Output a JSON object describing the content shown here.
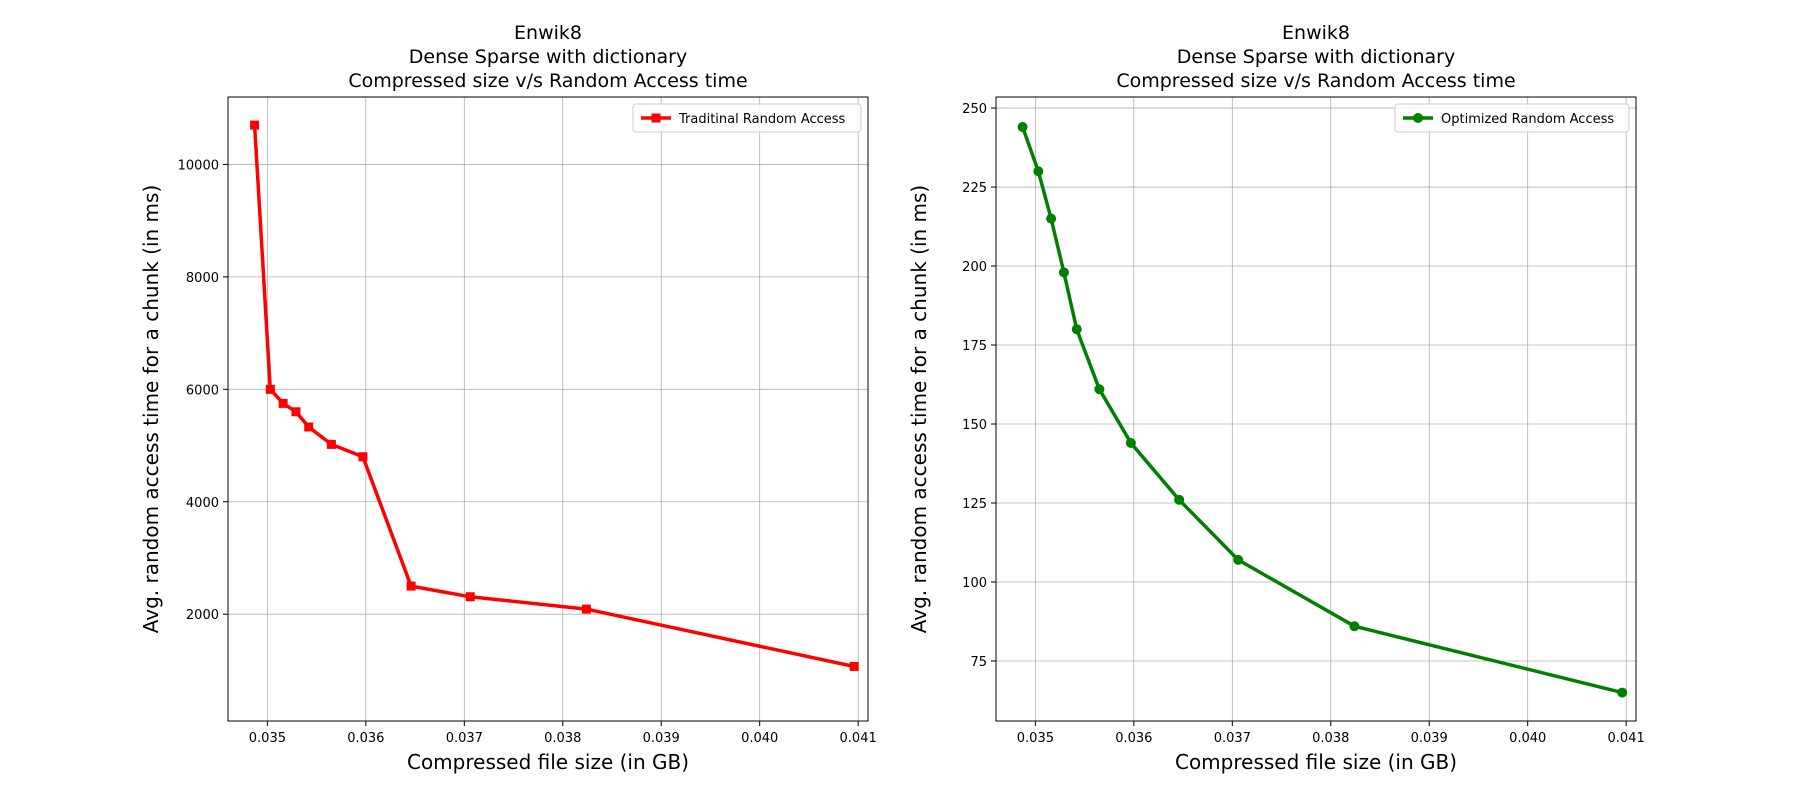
{
  "chart_data": [
    {
      "type": "line",
      "title_lines": [
        "Enwik8",
        "Dense Sparse with dictionary",
        "Compressed size v/s Random Access time"
      ],
      "xlabel": "Compressed file size (in GB)",
      "ylabel": "Avg. random access time for a chunk (in ms)",
      "xlim": [
        0.0346,
        0.0411
      ],
      "ylim": [
        100,
        11200
      ],
      "xticks": [
        0.035,
        0.036,
        0.037,
        0.038,
        0.039,
        0.04,
        0.041
      ],
      "xtick_labels": [
        "0.035",
        "0.036",
        "0.037",
        "0.038",
        "0.039",
        "0.040",
        "0.041"
      ],
      "yticks": [
        2000,
        4000,
        6000,
        8000,
        10000
      ],
      "ytick_labels": [
        "2000",
        "4000",
        "6000",
        "8000",
        "10000"
      ],
      "grid": true,
      "legend_position": "top-right",
      "series": [
        {
          "name": "Traditinal Random Access",
          "color": "#ff0000",
          "marker": "square",
          "x": [
            0.03487,
            0.03503,
            0.03516,
            0.03529,
            0.03542,
            0.03565,
            0.03597,
            0.03646,
            0.03706,
            0.03824,
            0.04096
          ],
          "y": [
            10700,
            6000,
            5750,
            5600,
            5330,
            5020,
            4800,
            2500,
            2310,
            2090,
            1070
          ]
        }
      ]
    },
    {
      "type": "line",
      "title_lines": [
        "Enwik8",
        "Dense Sparse with dictionary",
        "Compressed size v/s Random Access time"
      ],
      "xlabel": "Compressed file size (in GB)",
      "ylabel": "Avg. random access time for a chunk (in ms)",
      "xlim": [
        0.0346,
        0.0411
      ],
      "ylim": [
        56,
        253.5
      ],
      "xticks": [
        0.035,
        0.036,
        0.037,
        0.038,
        0.039,
        0.04,
        0.041
      ],
      "xtick_labels": [
        "0.035",
        "0.036",
        "0.037",
        "0.038",
        "0.039",
        "0.040",
        "0.041"
      ],
      "yticks": [
        75,
        100,
        125,
        150,
        175,
        200,
        225,
        250
      ],
      "ytick_labels": [
        "75",
        "100",
        "125",
        "150",
        "175",
        "200",
        "225",
        "250"
      ],
      "grid": true,
      "legend_position": "top-right",
      "series": [
        {
          "name": "Optimized Random Access",
          "color": "#008000",
          "marker": "circle",
          "x": [
            0.03487,
            0.03503,
            0.03516,
            0.03529,
            0.03542,
            0.03565,
            0.03597,
            0.03646,
            0.03706,
            0.03824,
            0.04096
          ],
          "y": [
            244,
            230,
            215,
            198,
            180,
            161,
            144,
            126,
            107,
            86,
            65
          ]
        }
      ]
    }
  ]
}
